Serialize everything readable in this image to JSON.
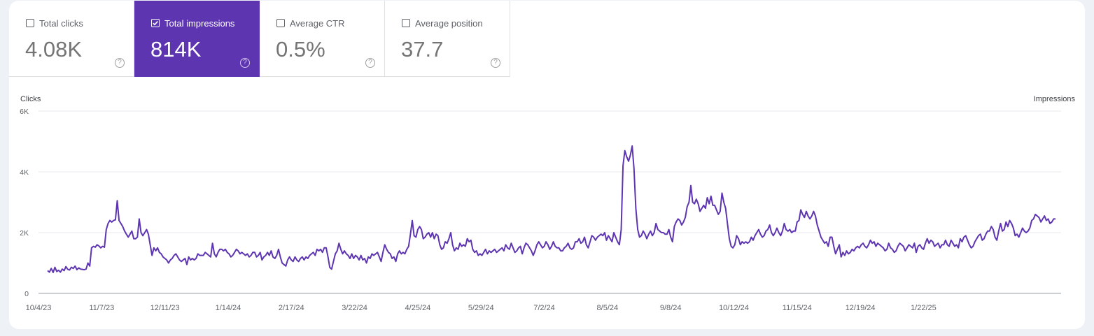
{
  "metrics": [
    {
      "label": "Total clicks",
      "value": "4.08K",
      "checked": false,
      "help": "?"
    },
    {
      "label": "Total impressions",
      "value": "814K",
      "checked": true,
      "help": "?"
    },
    {
      "label": "Average CTR",
      "value": "0.5%",
      "checked": false,
      "help": "?"
    },
    {
      "label": "Average position",
      "value": "37.7",
      "checked": false,
      "help": "?"
    }
  ],
  "colors": {
    "accent": "#5e35b1",
    "line": "#5e35b1",
    "grid": "#e8eaed",
    "axis": "#9aa0a6"
  },
  "chart_data": {
    "type": "line",
    "ylabel": "Clicks",
    "ylabel_right": "Impressions",
    "ylim": [
      0,
      6000
    ],
    "yticks": [
      "0",
      "2K",
      "4K",
      "6K"
    ],
    "xticks": [
      "10/4/23",
      "11/7/23",
      "12/11/23",
      "1/14/24",
      "2/17/24",
      "3/22/24",
      "4/25/24",
      "5/29/24",
      "7/2/24",
      "8/5/24",
      "9/8/24",
      "10/12/24",
      "11/15/24",
      "12/19/24",
      "1/22/25"
    ],
    "grid": true,
    "series": [
      {
        "x_start": "10/4/23",
        "values": [
          750,
          700,
          820,
          690,
          860,
          720,
          760,
          700,
          800,
          750,
          880,
          790,
          770,
          860,
          820,
          900,
          780,
          840,
          800,
          790,
          780,
          800,
          1000,
          900,
          1500,
          1550,
          1520,
          1600,
          1560,
          1500,
          1550,
          1520,
          2100,
          2300,
          2400,
          2350,
          2400,
          2420,
          3050,
          2400,
          2300,
          2200,
          2050,
          1950,
          1850,
          1950,
          2050,
          1800,
          1800,
          1850,
          2450,
          2000,
          1900,
          2000,
          2100,
          1950,
          1600,
          1250,
          1500,
          1400,
          1500,
          1350,
          1300,
          1200,
          1150,
          1100,
          1000,
          1100,
          1150,
          1250,
          1300,
          1200,
          1100,
          1050,
          1100,
          1150,
          950,
          1200,
          1100,
          1150,
          1100,
          1150,
          1300,
          1250,
          1250,
          1250,
          1350,
          1300,
          1250,
          1200,
          1650,
          1300,
          1200,
          1350,
          1450,
          1450,
          1400,
          1450,
          1350,
          1300,
          1200,
          1250,
          1350,
          1450,
          1400,
          1300,
          1350,
          1300,
          1250,
          1300,
          1200,
          1250,
          1350,
          1350,
          1200,
          1250,
          1350,
          1100,
          1200,
          1250,
          1350,
          1250,
          1400,
          1200,
          1150,
          1250,
          1450,
          1200,
          1000,
          950,
          900,
          1100,
          1200,
          1100,
          1050,
          1200,
          1100,
          1050,
          1150,
          1200,
          1100,
          1200,
          1150,
          1250,
          1300,
          1350,
          1250,
          1450,
          1400,
          1450,
          1350,
          1500,
          1500,
          1200,
          850,
          800,
          1050,
          1300,
          1400,
          1650,
          1450,
          1300,
          1400,
          1300,
          1250,
          1150,
          1300,
          1150,
          1250,
          1200,
          1100,
          1250,
          1100,
          1150,
          1000,
          1200,
          1150,
          1300,
          1250,
          1300,
          1350,
          1200,
          1050,
          1350,
          1600,
          1450,
          1350,
          1300,
          1150,
          1200,
          1050,
          1300,
          1400,
          1300,
          1350,
          1300,
          1450,
          1550,
          1950,
          2400,
          1900,
          1850,
          2100,
          2200,
          2100,
          1800,
          1850,
          1950,
          2000,
          1850,
          2000,
          1800,
          1950,
          1900,
          1600,
          1450,
          1500,
          1700,
          1650,
          1800,
          2000,
          1600,
          1400,
          1500,
          1450,
          1650,
          1550,
          1600,
          1550,
          1800,
          1700,
          1750,
          1450,
          1350,
          1400,
          1250,
          1300,
          1250,
          1350,
          1450,
          1300,
          1400,
          1350,
          1400,
          1450,
          1350,
          1400,
          1450,
          1500,
          1400,
          1600,
          1500,
          1450,
          1650,
          1500,
          1350,
          1400,
          1500,
          1550,
          1300,
          1500,
          1650,
          1600,
          1500,
          1400,
          1250,
          1400,
          1600,
          1700,
          1600,
          1500,
          1550,
          1700,
          1600,
          1450,
          1550,
          1700,
          1550,
          1500,
          1500,
          1400,
          1400,
          1500,
          1550,
          1650,
          1500,
          1450,
          1500,
          1700,
          1700,
          1800,
          1650,
          1700,
          1850,
          1600,
          1500,
          1700,
          1900,
          1850,
          1750,
          1850,
          1900,
          1950,
          1900,
          2000,
          1750,
          1900,
          1800,
          1700,
          2000,
          1850,
          1700,
          1600,
          2100,
          4200,
          4700,
          4500,
          4350,
          4550,
          4850,
          4100,
          2800,
          2100,
          1850,
          1900,
          2050,
          1950,
          1800,
          1950,
          2050,
          1900,
          2000,
          2300,
          2100,
          2050,
          2000,
          2000,
          1950,
          1950,
          2100,
          1850,
          1700,
          2200,
          2350,
          2450,
          2400,
          2250,
          2350,
          2500,
          2850,
          3000,
          3550,
          3000,
          2950,
          3100,
          2950,
          2700,
          2800,
          2900,
          2800,
          3150,
          2950,
          3200,
          2900,
          2900,
          2750,
          2600,
          2700,
          3300,
          3000,
          2800,
          2300,
          1800,
          1550,
          1500,
          1600,
          1900,
          1800,
          1600,
          1700,
          1650,
          1700,
          1650,
          1700,
          1850,
          1750,
          1900,
          2000,
          2100,
          1950,
          1850,
          1900,
          2050,
          2100,
          2250,
          2000,
          1900,
          2000,
          2150,
          2000,
          1900,
          2050,
          2300,
          2100,
          2050,
          2100,
          2000,
          2050,
          2050,
          2350,
          2400,
          2750,
          2600,
          2500,
          2700,
          2550,
          2450,
          2550,
          2700,
          2550,
          2250,
          2050,
          1850,
          1750,
          1650,
          1700,
          1550,
          1850,
          1850,
          1550,
          1300,
          1450,
          1600,
          1200,
          1350,
          1250,
          1400,
          1300,
          1350,
          1450,
          1400,
          1500,
          1550,
          1500,
          1600,
          1650,
          1550,
          1500,
          1600,
          1750,
          1650,
          1700,
          1550,
          1650,
          1600,
          1550,
          1500,
          1400,
          1450,
          1650,
          1500,
          1450,
          1350,
          1400,
          1550,
          1650,
          1600,
          1550,
          1400,
          1500,
          1600,
          1550,
          1500,
          1650,
          1350,
          1550,
          1600,
          1500,
          1450,
          1650,
          1800,
          1650,
          1750,
          1700,
          1550,
          1600,
          1650,
          1500,
          1600,
          1600,
          1750,
          1600,
          1550,
          1750,
          1650,
          1550,
          1600,
          1500,
          1800,
          1700,
          1850,
          1900,
          1750,
          1600,
          1500,
          1550,
          1700,
          1800,
          1900,
          1950,
          1750,
          1800,
          1950,
          2050,
          2050,
          2200,
          2100,
          1850,
          1750,
          2050,
          2300,
          2050,
          2100,
          2350,
          2200,
          2400,
          2300,
          2150,
          1900,
          1950,
          1850,
          2000,
          2150,
          2050,
          2000,
          2050,
          2150,
          2400,
          2450,
          2600,
          2550,
          2500,
          2350,
          2450,
          2550,
          2400,
          2450,
          2300,
          2350,
          2450,
          2450
        ]
      }
    ]
  }
}
